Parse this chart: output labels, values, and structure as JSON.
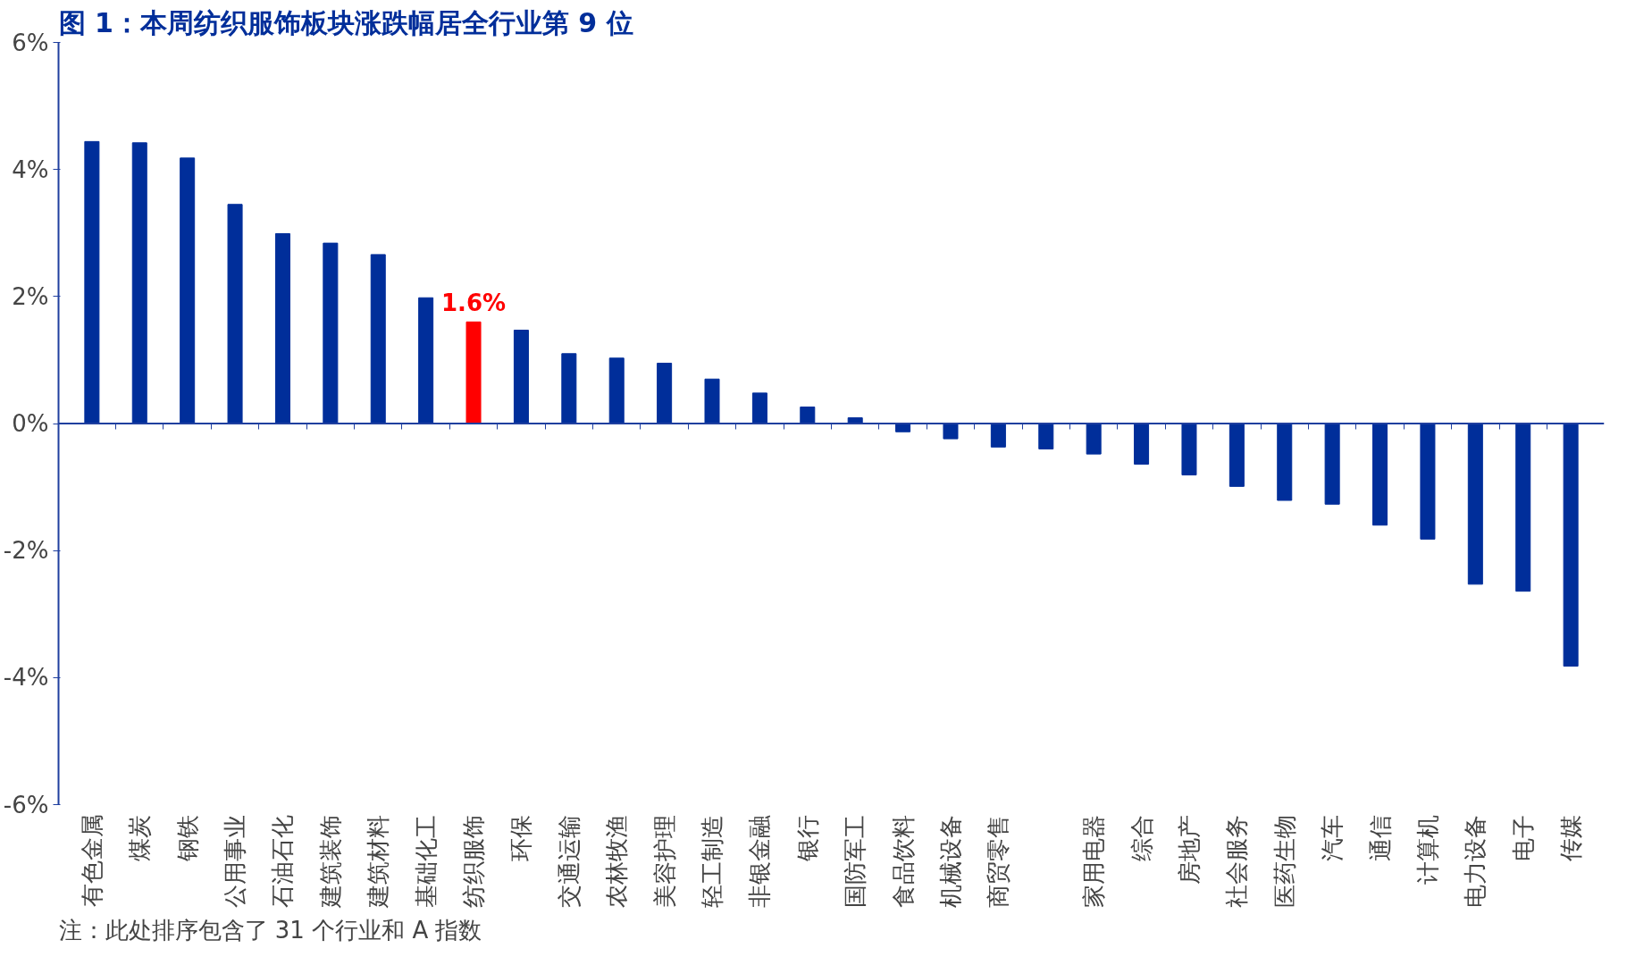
{
  "chart_data": {
    "type": "bar",
    "title": "图 1：本周纺织服饰板块涨跌幅居全行业第 9 位",
    "categories": [
      "有色金属",
      "煤炭",
      "钢铁",
      "公用事业",
      "石油石化",
      "建筑装饰",
      "建筑材料",
      "基础化工",
      "纺织服饰",
      "环保",
      "交通运输",
      "农林牧渔",
      "美容护理",
      "轻工制造",
      "非银金融",
      "银行",
      "国防军工",
      "食品饮料",
      "机械设备",
      "商贸零售",
      null,
      "家用电器",
      "综合",
      "房地产",
      "社会服务",
      "医药生物",
      "汽车",
      "通信",
      "计算机",
      "电力设备",
      "电子",
      "传媒"
    ],
    "values": [
      4.44,
      4.42,
      4.18,
      3.45,
      2.99,
      2.84,
      2.66,
      1.98,
      1.6,
      1.47,
      1.1,
      1.03,
      0.95,
      0.7,
      0.48,
      0.26,
      0.09,
      -0.13,
      -0.24,
      -0.37,
      -0.4,
      -0.48,
      -0.64,
      -0.81,
      -0.99,
      -1.21,
      -1.27,
      -1.6,
      -1.82,
      -2.53,
      -2.64,
      -3.82
    ],
    "colors": [
      "#002e9a",
      "#002e9a",
      "#002e9a",
      "#002e9a",
      "#002e9a",
      "#002e9a",
      "#002e9a",
      "#002e9a",
      "#ff0000",
      "#002e9a",
      "#002e9a",
      "#002e9a",
      "#002e9a",
      "#002e9a",
      "#002e9a",
      "#002e9a",
      "#002e9a",
      "#002e9a",
      "#002e9a",
      "#002e9a",
      "#002e9a",
      "#002e9a",
      "#002e9a",
      "#002e9a",
      "#002e9a",
      "#002e9a",
      "#002e9a",
      "#002e9a",
      "#002e9a",
      "#002e9a",
      "#002e9a",
      "#002e9a"
    ],
    "value_labels": [
      null,
      null,
      null,
      null,
      null,
      null,
      null,
      null,
      "1.6%",
      null,
      null,
      null,
      null,
      null,
      null,
      null,
      null,
      null,
      null,
      null,
      null,
      null,
      null,
      null,
      null,
      null,
      null,
      null,
      null,
      null,
      null,
      null
    ],
    "ylim": [
      -6,
      6
    ],
    "yticks": [
      {
        "value": -6,
        "label": "-6%"
      },
      {
        "value": -4,
        "label": "-4%"
      },
      {
        "value": -2,
        "label": "-2%"
      },
      {
        "value": 0,
        "label": "0%"
      },
      {
        "value": 2,
        "label": "2%"
      },
      {
        "value": 4,
        "label": "4%"
      },
      {
        "value": 6,
        "label": "6%"
      }
    ],
    "grid": false,
    "ref_lines": [
      {
        "axis": "y",
        "value": 0,
        "color": "#1f3f9f"
      }
    ],
    "annotations": [
      "注：此处排序包含了 31 个行业和 A 指数"
    ]
  }
}
